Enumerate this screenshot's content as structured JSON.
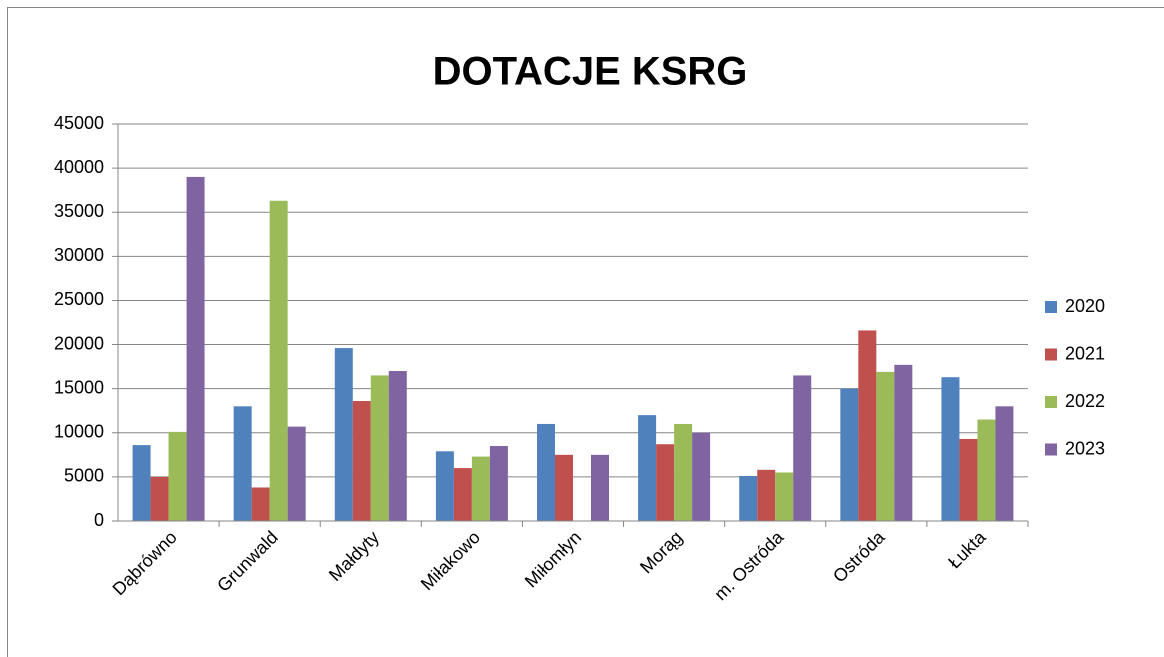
{
  "chart_data": {
    "type": "bar",
    "title": "DOTACJE KSRG",
    "categories": [
      "Dąbrówno",
      "Grunwald",
      "Małdyty",
      "Miłakowo",
      "Miłomłyn",
      "Morąg",
      "m. Ostróda",
      "Ostróda",
      "Łukta"
    ],
    "series": [
      {
        "name": "2020",
        "color": "#4f81bd",
        "values": [
          8600,
          13000,
          19600,
          7900,
          11000,
          12000,
          5100,
          15000,
          16300
        ]
      },
      {
        "name": "2021",
        "color": "#c0504d",
        "values": [
          5000,
          3800,
          13600,
          6000,
          7500,
          8700,
          5800,
          21600,
          9300
        ]
      },
      {
        "name": "2022",
        "color": "#9bbb59",
        "values": [
          10100,
          36300,
          16500,
          7300,
          null,
          11000,
          5500,
          16900,
          11500
        ]
      },
      {
        "name": "2023",
        "color": "#8064a2",
        "values": [
          39000,
          10700,
          17000,
          8500,
          7500,
          10000,
          16500,
          17700,
          13000
        ]
      }
    ],
    "ylim": [
      0,
      45000
    ],
    "yticks": [
      0,
      5000,
      10000,
      15000,
      20000,
      25000,
      30000,
      35000,
      40000,
      45000
    ],
    "grid": true,
    "legend": "right"
  }
}
